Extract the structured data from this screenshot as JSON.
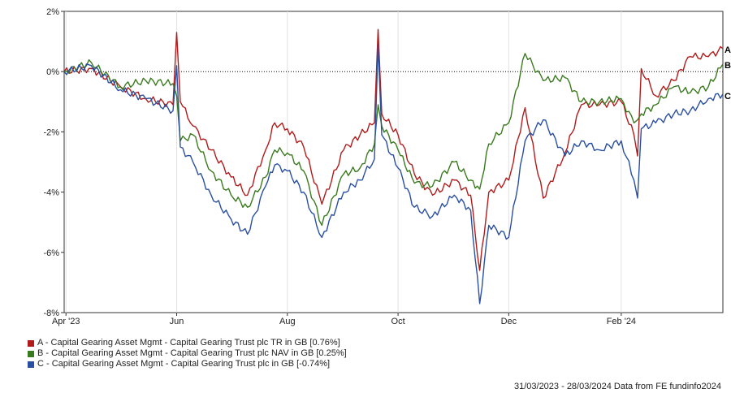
{
  "chart_data": {
    "type": "line",
    "x_ticks": [
      "Apr '23",
      "Jun",
      "Aug",
      "Oct",
      "Dec",
      "Feb '24"
    ],
    "y_ticks": [
      "2%",
      "0%",
      "-2%",
      "-4%",
      "-6%",
      "-8%"
    ],
    "ylim": [
      -8,
      2
    ],
    "grid": true,
    "zero_line": true,
    "series": [
      {
        "name": "A - Capital Gearing Asset Mgmt - Capital Gearing Trust plc TR in GB [0.76%]",
        "end_label": "A",
        "color": "#b01c1c",
        "x": [
          "2023-03-31",
          "2023-04-15",
          "2023-05-01",
          "2023-05-15",
          "2023-05-30",
          "2023-06-01",
          "2023-06-03",
          "2023-06-10",
          "2023-06-20",
          "2023-07-01",
          "2023-07-10",
          "2023-07-20",
          "2023-07-25",
          "2023-08-01",
          "2023-08-10",
          "2023-08-20",
          "2023-09-01",
          "2023-09-10",
          "2023-09-18",
          "2023-09-20",
          "2023-09-22",
          "2023-10-01",
          "2023-10-10",
          "2023-10-20",
          "2023-11-01",
          "2023-11-10",
          "2023-11-15",
          "2023-11-20",
          "2023-12-01",
          "2023-12-10",
          "2023-12-20",
          "2024-01-01",
          "2024-01-10",
          "2024-01-20",
          "2024-02-01",
          "2024-02-08",
          "2024-02-10",
          "2024-02-12",
          "2024-02-20",
          "2024-03-01",
          "2024-03-10",
          "2024-03-20",
          "2024-03-28"
        ],
        "y": [
          0.0,
          0.1,
          -0.5,
          -0.9,
          -1.1,
          1.3,
          -1.0,
          -1.8,
          -2.6,
          -3.5,
          -4.1,
          -2.6,
          -1.7,
          -1.9,
          -2.5,
          -4.4,
          -2.6,
          -2.1,
          -1.7,
          1.4,
          -1.4,
          -2.1,
          -3.4,
          -4.1,
          -3.6,
          -4.1,
          -6.6,
          -4.0,
          -3.6,
          -1.2,
          -4.2,
          -2.7,
          -1.1,
          -1.1,
          -1.0,
          -2.1,
          -2.8,
          0.1,
          -0.8,
          -0.3,
          0.5,
          0.5,
          0.76
        ]
      },
      {
        "name": "B - Capital Gearing Asset Mgmt - Capital Gearing Trust plc NAV in GB [0.25%]",
        "end_label": "B",
        "color": "#3a7a1e",
        "x": [
          "2023-03-31",
          "2023-04-15",
          "2023-05-01",
          "2023-05-15",
          "2023-05-30",
          "2023-06-01",
          "2023-06-03",
          "2023-06-10",
          "2023-06-20",
          "2023-07-01",
          "2023-07-10",
          "2023-07-20",
          "2023-07-25",
          "2023-08-01",
          "2023-08-10",
          "2023-08-20",
          "2023-09-01",
          "2023-09-10",
          "2023-09-18",
          "2023-09-20",
          "2023-09-22",
          "2023-10-01",
          "2023-10-10",
          "2023-10-20",
          "2023-11-01",
          "2023-11-10",
          "2023-11-15",
          "2023-11-20",
          "2023-12-01",
          "2023-12-10",
          "2023-12-20",
          "2024-01-01",
          "2024-01-10",
          "2024-01-20",
          "2024-02-01",
          "2024-02-08",
          "2024-02-10",
          "2024-02-12",
          "2024-02-20",
          "2024-03-01",
          "2024-03-10",
          "2024-03-20",
          "2024-03-28"
        ],
        "y": [
          0.0,
          0.3,
          -0.5,
          -0.3,
          -0.4,
          -0.8,
          -2.3,
          -2.1,
          -3.3,
          -4.1,
          -4.5,
          -3.5,
          -2.6,
          -2.7,
          -3.3,
          -5.1,
          -3.4,
          -3.2,
          -2.4,
          -1.1,
          -1.8,
          -2.6,
          -3.7,
          -3.8,
          -3.0,
          -3.6,
          -3.9,
          -2.4,
          -1.7,
          0.6,
          -0.3,
          -0.2,
          -1.0,
          -1.0,
          -0.9,
          -1.7,
          -1.6,
          -1.4,
          -1.1,
          -0.5,
          -0.7,
          -0.5,
          0.25
        ]
      },
      {
        "name": "C - Capital Gearing Asset Mgmt - Capital Gearing Trust plc in GB [-0.74%]",
        "end_label": "C",
        "color": "#2a4fa0",
        "x": [
          "2023-03-31",
          "2023-04-15",
          "2023-05-01",
          "2023-05-15",
          "2023-05-30",
          "2023-06-01",
          "2023-06-03",
          "2023-06-10",
          "2023-06-20",
          "2023-07-01",
          "2023-07-10",
          "2023-07-20",
          "2023-07-25",
          "2023-08-01",
          "2023-08-10",
          "2023-08-20",
          "2023-09-01",
          "2023-09-10",
          "2023-09-18",
          "2023-09-20",
          "2023-09-22",
          "2023-10-01",
          "2023-10-10",
          "2023-10-20",
          "2023-11-01",
          "2023-11-10",
          "2023-11-15",
          "2023-11-20",
          "2023-12-01",
          "2023-12-10",
          "2023-12-20",
          "2024-01-01",
          "2024-01-10",
          "2024-01-20",
          "2024-02-01",
          "2024-02-08",
          "2024-02-10",
          "2024-02-12",
          "2024-02-20",
          "2024-03-01",
          "2024-03-10",
          "2024-03-20",
          "2024-03-28"
        ],
        "y": [
          0.0,
          0.2,
          -0.6,
          -0.9,
          -1.3,
          0.2,
          -2.5,
          -3.0,
          -4.1,
          -4.9,
          -5.4,
          -3.8,
          -3.1,
          -3.3,
          -4.0,
          -5.5,
          -4.0,
          -3.6,
          -2.9,
          0.9,
          -2.1,
          -3.2,
          -4.5,
          -4.8,
          -4.1,
          -4.6,
          -7.7,
          -5.1,
          -5.5,
          -2.3,
          -1.6,
          -2.8,
          -2.3,
          -2.6,
          -2.3,
          -3.6,
          -4.2,
          -1.9,
          -1.7,
          -1.4,
          -1.3,
          -0.9,
          -0.74
        ]
      }
    ]
  },
  "footer": "31/03/2023 - 28/03/2024 Data from FE fundinfo2024"
}
